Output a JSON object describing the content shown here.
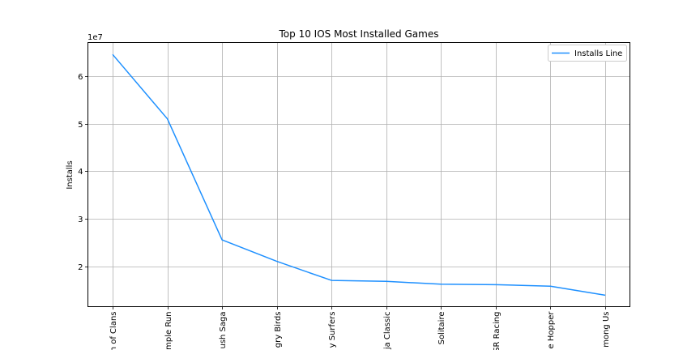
{
  "chart_data": {
    "type": "line",
    "title": "Top 10 IOS Most Installed Games",
    "xlabel": "",
    "ylabel": "Installs",
    "offset_label": "1e7",
    "categories": [
      "Clash of Clans",
      "Temple Run",
      "Candy Crush Saga",
      "Angry Birds",
      "Subway Surfers",
      "Fruit Ninja Classic",
      "Solitaire",
      "CSR Racing",
      "Crossy Road Hopper",
      "Among Us"
    ],
    "categories_visible_text": [
      "n of Clans",
      "mple Run",
      "ush Saga",
      "gry Birds",
      "y Surfers",
      "ja Classic",
      "Solitaire",
      "SR Racing",
      "e Hopper",
      "mong Us"
    ],
    "series": [
      {
        "name": "Installs Line",
        "color": "#1e90ff",
        "values": [
          64500000,
          51000000,
          25600000,
          21100000,
          17100000,
          16900000,
          16300000,
          16200000,
          15900000,
          14000000
        ]
      }
    ],
    "yticks": [
      20000000,
      30000000,
      40000000,
      50000000,
      60000000
    ],
    "ytick_labels": [
      "2",
      "3",
      "4",
      "5",
      "6"
    ],
    "ylim": [
      11600000,
      67000000
    ],
    "grid": true,
    "legend_position": "top-right"
  }
}
